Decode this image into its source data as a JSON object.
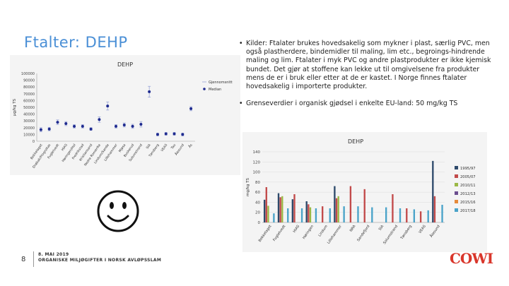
{
  "slide": {
    "title": "Ftalter: DEHP",
    "bullets": [
      "Kilder: Ftalater brukes hovedsakelig som mykner i plast, særlig PVC, men også plastherdere, bindemidler til maling, lim etc., begroings-hindrende maling og lim. Ftalater i myk PVC og andre plastprodukter er ikke kjemisk bundet. Det gjør at stoffene kan lekke ut til omgivelsene fra produkter mens de er i bruk eller etter at de er kastet. I Norge finnes ftalater hovedsakelig i importerte produkter.",
      "Grenseverdier i organisk gjødsel i enkelte EU-land: 50 mg/kg TS"
    ],
    "page_number": "8",
    "footer_date": "8. MAI 2019",
    "footer_title": "ORGANISKE MILJØGIFTER I NORSK AVLØPSSLAM",
    "logo_text": "COWI",
    "smiley_icon": "smiley-face-icon"
  },
  "chart_data": [
    {
      "type": "scatter",
      "title": "DEHP",
      "ylabel": "µg/kg TS",
      "ylim": [
        0,
        100000
      ],
      "yticks": [
        "0",
        "10000",
        "20000",
        "30000",
        "40000",
        "50000",
        "60000",
        "70000",
        "80000",
        "90000",
        "100000"
      ],
      "categories": [
        "Bekkelaget",
        "Drøbak/Frogn/Aas",
        "Fugletvedt",
        "HIAS",
        "Høringen/Hol",
        "Fredrikstad",
        "Kristiansand",
        "Nedre Romerike",
        "Lindum/Sande",
        "Lillehammer",
        "Mjøsa",
        "Buskerud",
        "Solumstrand",
        "SIA",
        "Tønsberg",
        "VEAS",
        "Tau",
        "Ålesund",
        "Ås"
      ],
      "series": [
        {
          "name": "Gjennomsnitt",
          "values": [
            17000,
            18000,
            28000,
            26000,
            22000,
            22000,
            18000,
            32000,
            52000,
            22000,
            24000,
            22000,
            25000,
            73000,
            10000,
            11000,
            11000,
            10000,
            48000
          ]
        },
        {
          "name": "Median",
          "values": [
            17000,
            18000,
            28000,
            26000,
            22000,
            22000,
            18000,
            32000,
            52000,
            22000,
            24000,
            22000,
            25000,
            73000,
            10000,
            11000,
            11000,
            10000,
            48000
          ]
        }
      ],
      "legend": "top-right",
      "colors": {
        "point": "#1f2b8f",
        "error": "#9aa6d8"
      }
    },
    {
      "type": "bar",
      "title": "DEHP",
      "ylabel": "mg/kg TS",
      "ylim": [
        0,
        140
      ],
      "yticks": [
        "0",
        "20",
        "40",
        "60",
        "80",
        "100",
        "120",
        "140"
      ],
      "categories": [
        "Bekkelaget",
        "Fugletvedt",
        "HIAS",
        "Høringen",
        "Lindum",
        "Lillehammer",
        "NRA",
        "Sandefjord",
        "SIA",
        "Solumstrand",
        "Tønsberg",
        "VEAS",
        "Ålesund"
      ],
      "series": [
        {
          "name": "1995/97",
          "color": "#2e4a6b",
          "values": [
            45,
            58,
            46,
            42,
            0,
            72,
            0,
            0,
            0,
            0,
            0,
            0,
            122
          ]
        },
        {
          "name": "2005/07",
          "color": "#c24a4a",
          "values": [
            70,
            50,
            56,
            36,
            32,
            48,
            72,
            66,
            0,
            56,
            28,
            22,
            52
          ]
        },
        {
          "name": "2010/11",
          "color": "#9bb845",
          "values": [
            33,
            52,
            0,
            30,
            0,
            52,
            0,
            0,
            0,
            0,
            0,
            0,
            0
          ]
        },
        {
          "name": "2012/13",
          "color": "#6b4e8f",
          "values": [
            0,
            0,
            0,
            0,
            0,
            0,
            0,
            0,
            0,
            0,
            0,
            0,
            0
          ]
        },
        {
          "name": "2015/16",
          "color": "#e68a3a",
          "values": [
            0,
            0,
            0,
            0,
            0,
            0,
            0,
            0,
            0,
            0,
            0,
            0,
            0
          ]
        },
        {
          "name": "2017/18",
          "color": "#4aa3c9",
          "values": [
            18,
            28,
            28,
            28,
            28,
            32,
            32,
            30,
            30,
            28,
            26,
            24,
            35
          ]
        }
      ],
      "legend": "right"
    }
  ]
}
